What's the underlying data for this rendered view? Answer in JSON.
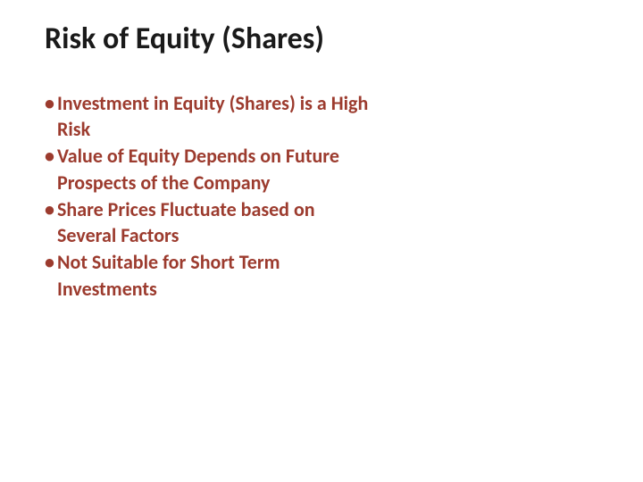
{
  "slide": {
    "title": "Risk of Equity (Shares)",
    "title_color": "#1a1a1a",
    "title_fontsize": 34,
    "title_fontweight": 700,
    "background_color": "#ffffff",
    "bullets": [
      "Investment in Equity (Shares) is a High Risk",
      "Value of Equity Depends on Future Prospects of the Company",
      "Share Prices Fluctuate based on Several Factors",
      "Not Suitable for Short Term Investments"
    ],
    "bullet_color": "#9c3b2e",
    "bullet_fontsize": 22,
    "bullet_fontweight": 700,
    "bullet_marker": "•",
    "content_max_width": 370,
    "font_family": "Calibri"
  }
}
